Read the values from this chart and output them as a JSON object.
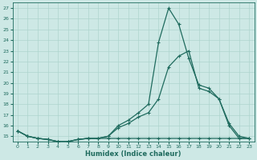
{
  "xlabel": "Humidex (Indice chaleur)",
  "background_color": "#cde8e5",
  "line_color": "#1f6b5e",
  "grid_color": "#aed4ce",
  "x_values": [
    0,
    1,
    2,
    3,
    4,
    5,
    6,
    7,
    8,
    9,
    10,
    11,
    12,
    13,
    14,
    15,
    16,
    17,
    18,
    19,
    20,
    21,
    22,
    23
  ],
  "line_peak_y": [
    15.5,
    15.0,
    14.8,
    14.7,
    14.5,
    14.5,
    14.7,
    14.8,
    14.8,
    15.0,
    16.0,
    16.5,
    17.2,
    18.0,
    23.8,
    27.0,
    25.5,
    22.3,
    19.8,
    19.5,
    18.5,
    16.2,
    15.0,
    14.8
  ],
  "line_mid_y": [
    15.5,
    15.0,
    14.8,
    14.7,
    14.5,
    14.5,
    14.7,
    14.8,
    14.8,
    15.0,
    15.8,
    16.2,
    16.8,
    17.2,
    18.5,
    21.5,
    22.5,
    23.0,
    19.5,
    19.2,
    18.5,
    16.0,
    14.8,
    14.8
  ],
  "line_flat_y": [
    15.5,
    15.0,
    14.8,
    14.7,
    14.5,
    14.5,
    14.7,
    14.8,
    14.8,
    14.8,
    14.8,
    14.8,
    14.8,
    14.8,
    14.8,
    14.8,
    14.8,
    14.8,
    14.8,
    14.8,
    14.8,
    14.8,
    14.8,
    14.8
  ],
  "ylim_min": 14.5,
  "ylim_max": 27.5,
  "xlim_min": -0.5,
  "xlim_max": 23.5,
  "yticks": [
    15,
    16,
    17,
    18,
    19,
    20,
    21,
    22,
    23,
    24,
    25,
    26,
    27
  ],
  "xticks": [
    0,
    1,
    2,
    3,
    4,
    5,
    6,
    7,
    8,
    9,
    10,
    11,
    12,
    13,
    14,
    15,
    16,
    17,
    18,
    19,
    20,
    21,
    22,
    23
  ],
  "xlabel_fontsize": 6,
  "tick_fontsize": 4.5,
  "linewidth": 0.9,
  "markersize": 2.5
}
